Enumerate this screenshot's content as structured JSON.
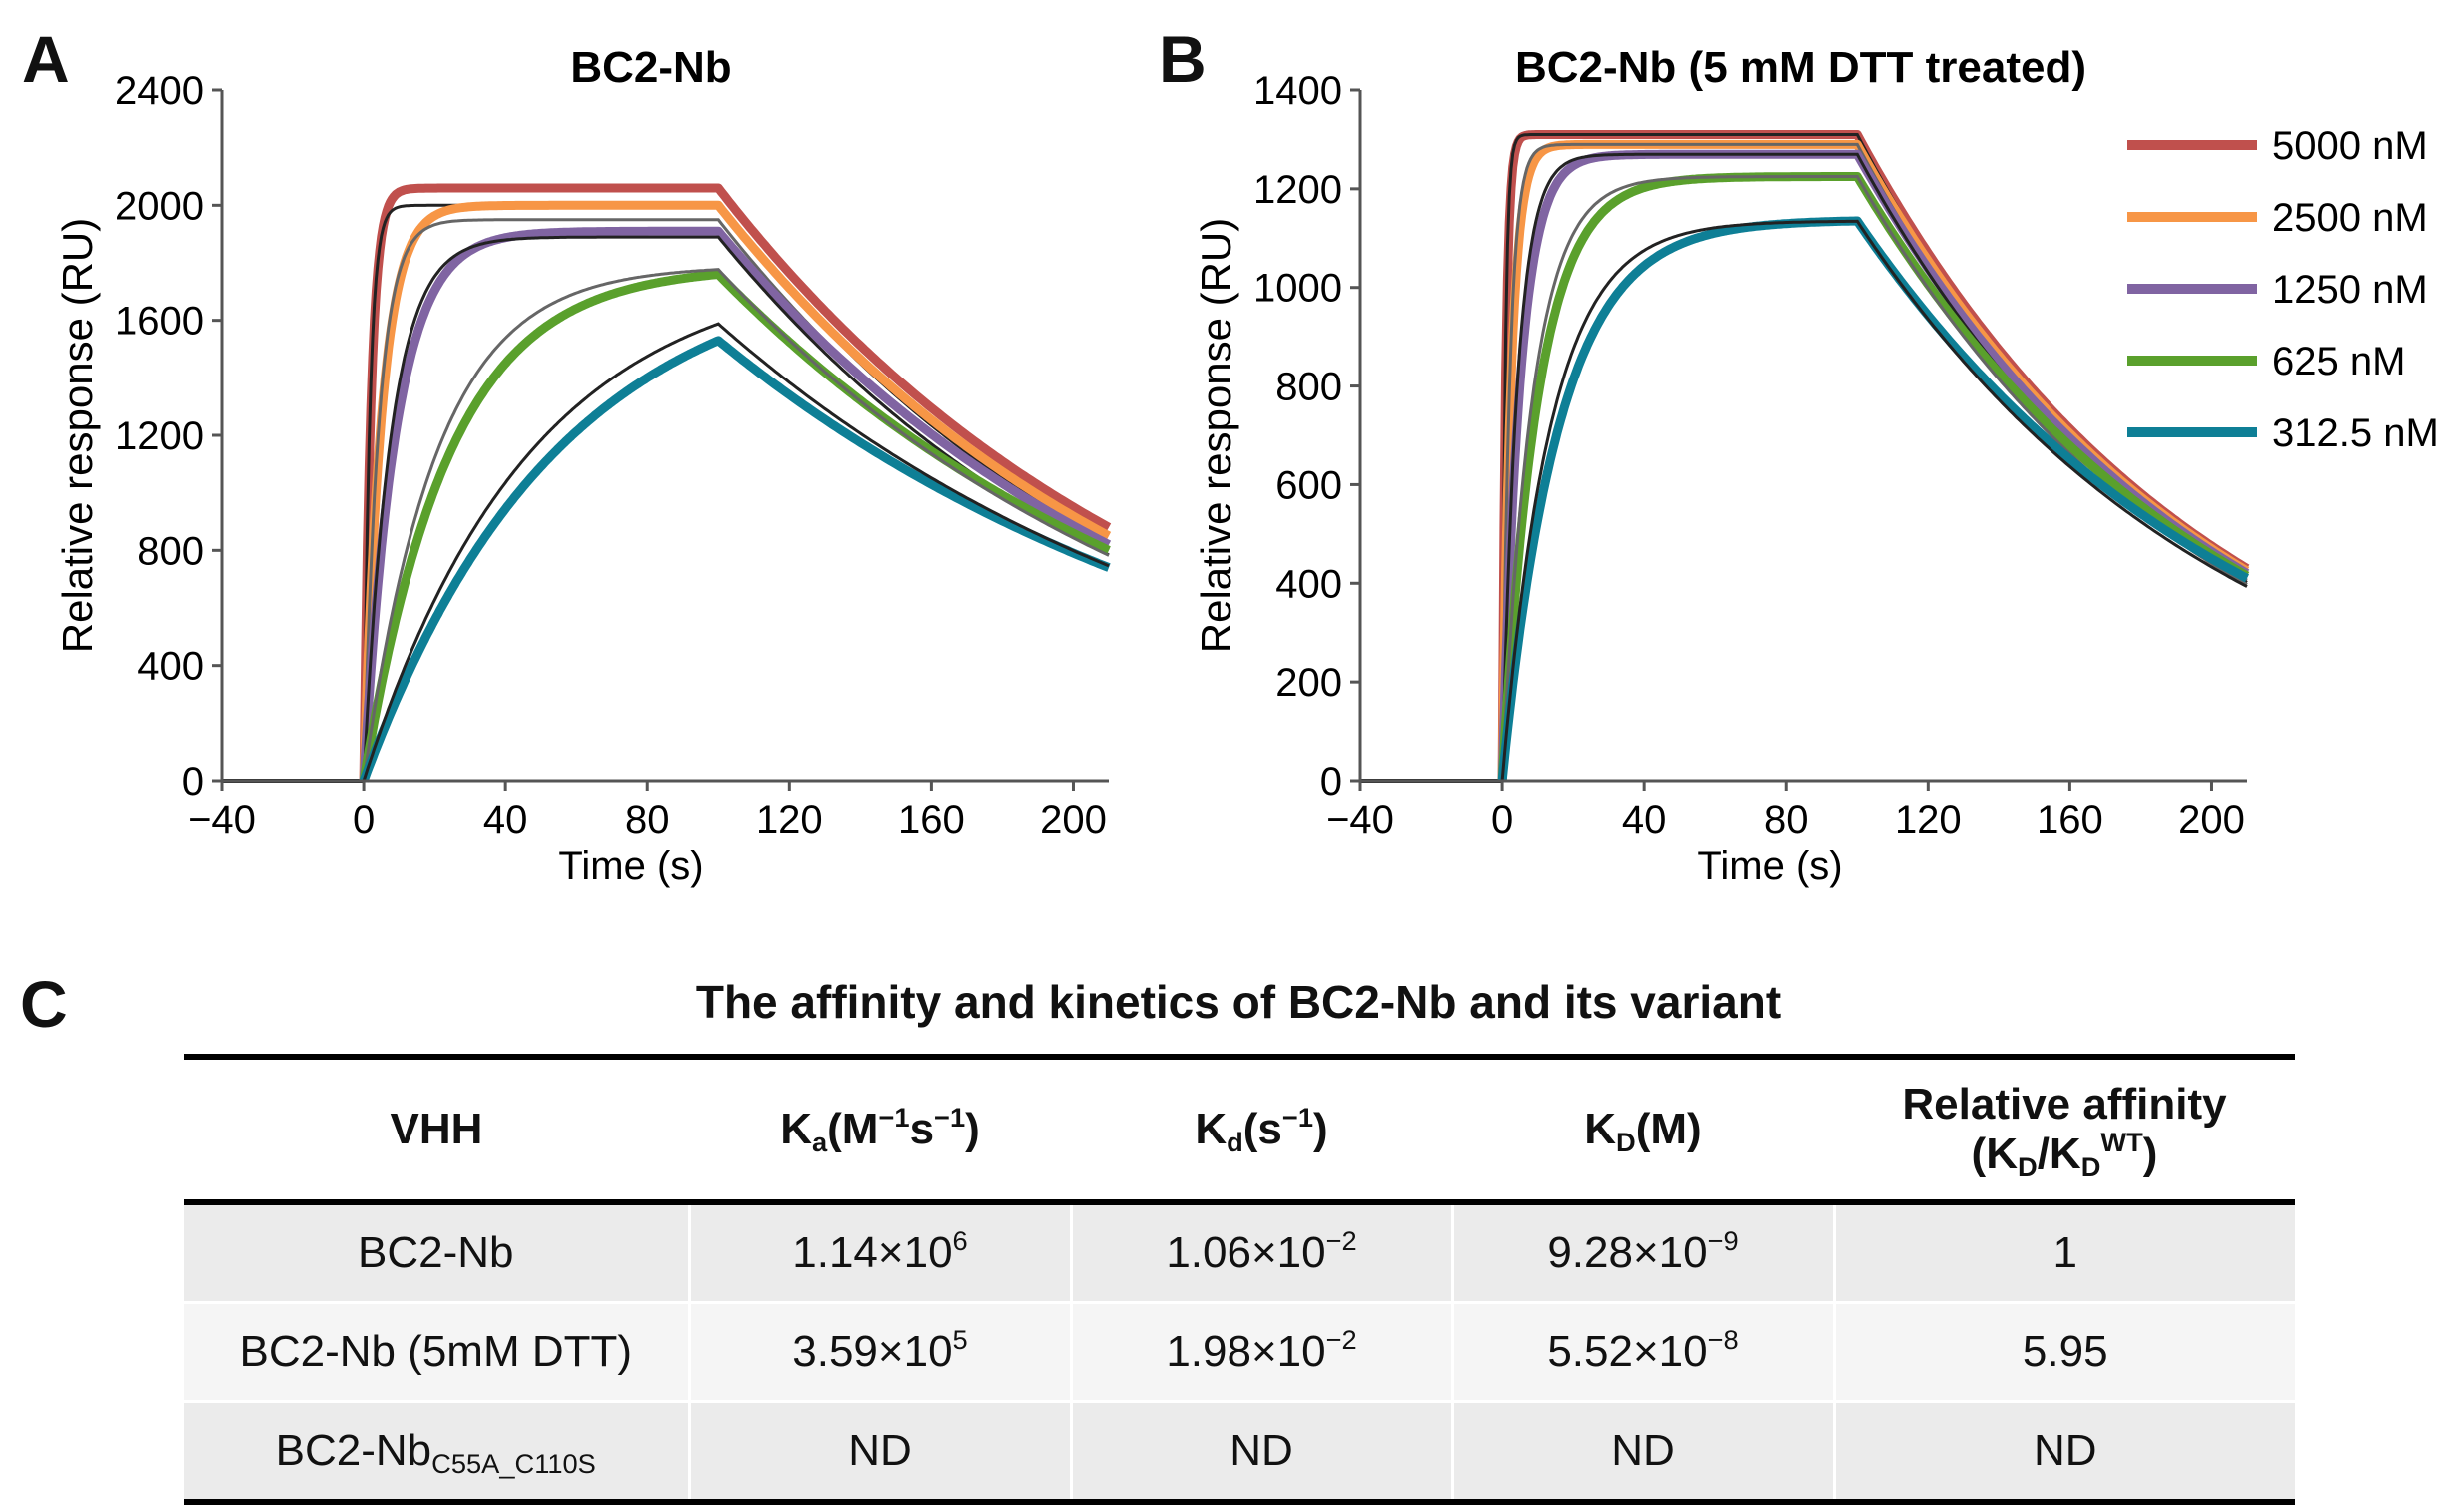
{
  "panels": {
    "a": "A",
    "b": "B",
    "c": "C"
  },
  "chart_data": [
    {
      "type": "line",
      "title": "BC2-Nb",
      "xlabel": "Time (s)",
      "ylabel": "Relative response (RU)",
      "xlim": [
        -40,
        210
      ],
      "ylim": [
        0,
        2400
      ],
      "xticks": [
        -40,
        0,
        40,
        80,
        120,
        160,
        200
      ],
      "xtick_labels": [
        "−40",
        "0",
        "40",
        "80",
        "120",
        "160",
        "200"
      ],
      "yticks": [
        0,
        400,
        800,
        1200,
        1600,
        2000,
        2400
      ],
      "ytick_labels": [
        "0",
        "400",
        "800",
        "1200",
        "1600",
        "2000",
        "2400"
      ],
      "injection_start": 0,
      "injection_end": 100,
      "end_time": 210,
      "series": [
        {
          "name": "5000 nM",
          "color": "#c0504d",
          "plateau": 2000,
          "peak": 2060,
          "on_tau": 2,
          "off_end": 880
        },
        {
          "name": "2500 nM",
          "color": "#f79646",
          "plateau": 1950,
          "peak": 2000,
          "on_tau": 5,
          "off_end": 850
        },
        {
          "name": "1250 nM",
          "color": "#8064a2",
          "plateau": 1890,
          "peak": 1910,
          "on_tau": 9,
          "off_end": 820
        },
        {
          "name": "625 nM",
          "color": "#5aa02c",
          "plateau": 1790,
          "peak": 1760,
          "on_tau": 24,
          "off_end": 800
        },
        {
          "name": "312.5 nM",
          "color": "#0e7f96",
          "plateau": 1800,
          "peak": 1530,
          "on_tau": 55,
          "off_end": 740
        }
      ]
    },
    {
      "type": "line",
      "title": "BC2-Nb (5 mM DTT treated)",
      "xlabel": "Time (s)",
      "ylabel": "Relative response (RU)",
      "xlim": [
        -40,
        210
      ],
      "ylim": [
        0,
        1400
      ],
      "xticks": [
        -40,
        0,
        40,
        80,
        120,
        160,
        200
      ],
      "xtick_labels": [
        "−40",
        "0",
        "40",
        "80",
        "120",
        "160",
        "200"
      ],
      "yticks": [
        0,
        200,
        400,
        600,
        800,
        1000,
        1200,
        1400
      ],
      "ytick_labels": [
        "0",
        "200",
        "400",
        "600",
        "800",
        "1000",
        "1200",
        "1400"
      ],
      "injection_start": 0,
      "injection_end": 100,
      "end_time": 210,
      "series": [
        {
          "name": "5000 nM",
          "color": "#c0504d",
          "plateau": 1310,
          "peak": 1310,
          "on_tau": 1,
          "off_end": 430
        },
        {
          "name": "2500 nM",
          "color": "#f79646",
          "plateau": 1290,
          "peak": 1290,
          "on_tau": 2.5,
          "off_end": 425
        },
        {
          "name": "1250 nM",
          "color": "#8064a2",
          "plateau": 1270,
          "peak": 1270,
          "on_tau": 5,
          "off_end": 420
        },
        {
          "name": "625 nM",
          "color": "#5aa02c",
          "plateau": 1225,
          "peak": 1225,
          "on_tau": 10,
          "off_end": 415
        },
        {
          "name": "312.5 nM",
          "color": "#0e7f96",
          "plateau": 1135,
          "peak": 1135,
          "on_tau": 16,
          "off_end": 410
        }
      ]
    }
  ],
  "legend": [
    {
      "label": "5000 nM",
      "color": "#c0504d"
    },
    {
      "label": "2500 nM",
      "color": "#f79646"
    },
    {
      "label": "1250 nM",
      "color": "#8064a2"
    },
    {
      "label": "625 nM",
      "color": "#5aa02c"
    },
    {
      "label": "312.5 nM",
      "color": "#0e7f96"
    }
  ],
  "table": {
    "title": "The affinity and kinetics of BC2-Nb and its variant",
    "headers": {
      "vhh": "VHH",
      "ka": {
        "main": "K",
        "sub": "a",
        "rest": "(M",
        "sup1": "−1",
        "mid": "s",
        "sup2": "−1",
        "end": ")"
      },
      "kd": {
        "main": "K",
        "sub": "d",
        "rest": "(s",
        "sup1": "−1",
        "end": ")"
      },
      "KD": {
        "main": "K",
        "sub": "D",
        "rest": "(M)"
      },
      "rel": {
        "line1": "Relative affinity",
        "open": "(K",
        "sub1": "D",
        "slash": "/K",
        "sub2": "D",
        "sup": "WT",
        "close": ")"
      }
    },
    "rows": [
      {
        "vhh": "BC2-Nb",
        "vhh_sub": "",
        "ka": {
          "base": "1.14×10",
          "exp": "6"
        },
        "kd": {
          "base": "1.06×10",
          "exp": "−2"
        },
        "KD": {
          "base": "9.28×10",
          "exp": "−9"
        },
        "rel": "1"
      },
      {
        "vhh": "BC2-Nb (5mM DTT)",
        "vhh_sub": "",
        "ka": {
          "base": "3.59×10",
          "exp": "5"
        },
        "kd": {
          "base": "1.98×10",
          "exp": "−2"
        },
        "KD": {
          "base": "5.52×10",
          "exp": "−8"
        },
        "rel": "5.95"
      },
      {
        "vhh": "BC2-Nb",
        "vhh_sub": "C55A_C110S",
        "ka": {
          "base": "ND",
          "exp": ""
        },
        "kd": {
          "base": "ND",
          "exp": ""
        },
        "KD": {
          "base": "ND",
          "exp": ""
        },
        "rel": "ND"
      }
    ]
  }
}
